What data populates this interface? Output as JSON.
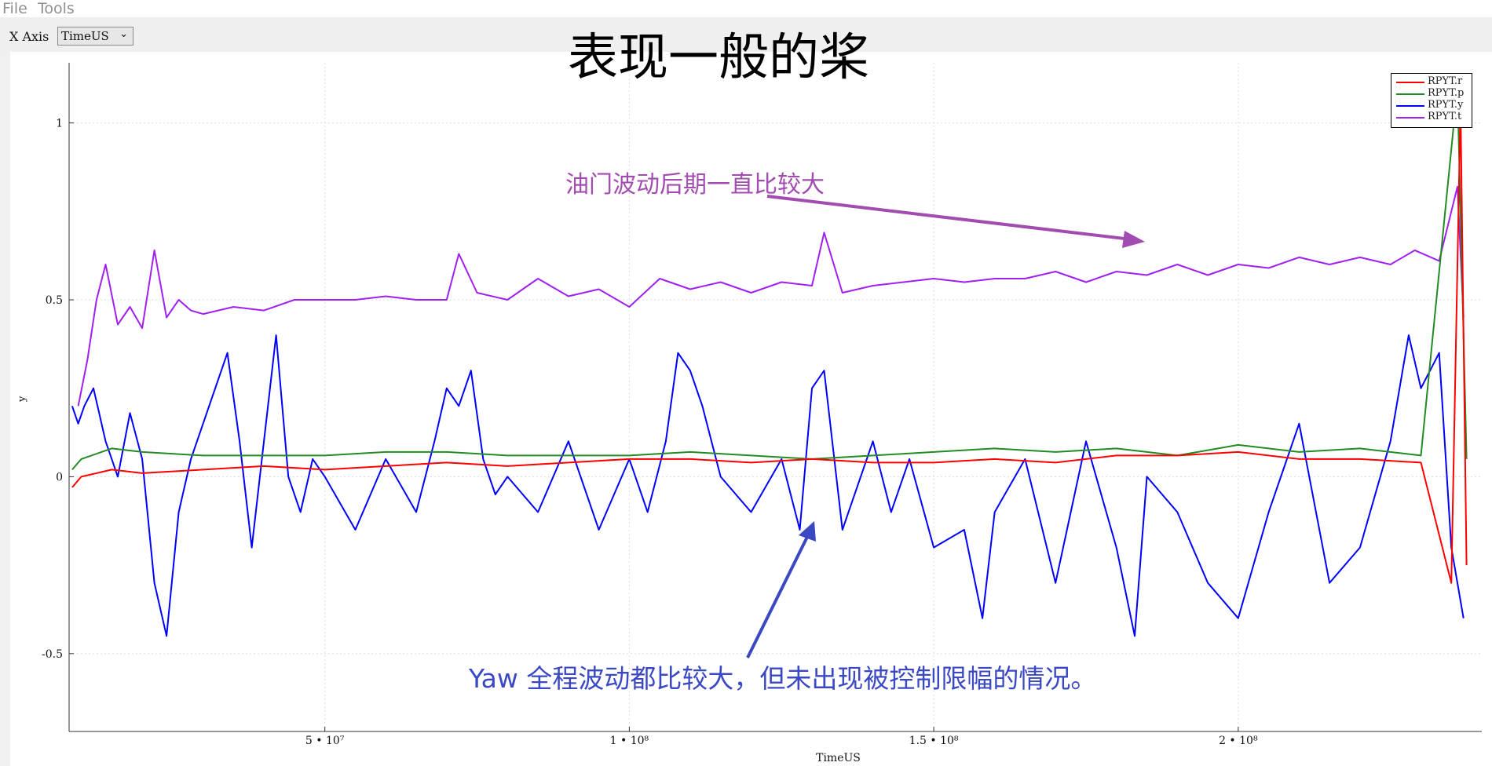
{
  "menu": {
    "file": "File",
    "tools": "Tools"
  },
  "toolbar": {
    "x_axis_label": "X Axis",
    "x_axis_value": "TimeUS",
    "dropdown_icon": "chevron-down-icon"
  },
  "page_title": "表现一般的桨",
  "annotations": {
    "throttle_note": "油门波动后期一直比较大",
    "throttle_color": "#a24bb0",
    "yaw_note": "Yaw 全程波动都比较大，但未出现被控制限幅的情况。",
    "yaw_color": "#3b48c4"
  },
  "legend": [
    {
      "label": "RPYT.r",
      "color": "#ff0000"
    },
    {
      "label": "RPYT.p",
      "color": "#228b22"
    },
    {
      "label": "RPYT.y",
      "color": "#0000ff"
    },
    {
      "label": "RPYT.t",
      "color": "#a020f0"
    }
  ],
  "chart_data": {
    "type": "line",
    "xlabel": "TimeUS",
    "ylabel": "y",
    "xlim": [
      8000000,
      240000000
    ],
    "ylim": [
      -0.72,
      1.17
    ],
    "x_ticks": [
      {
        "value": 50000000,
        "label": "5 • 10⁷"
      },
      {
        "value": 100000000,
        "label": "1 • 10⁸"
      },
      {
        "value": 150000000,
        "label": "1.5 • 10⁸"
      },
      {
        "value": 200000000,
        "label": "2 • 10⁸"
      }
    ],
    "y_ticks": [
      {
        "value": -0.5,
        "label": "-0.5"
      },
      {
        "value": 0,
        "label": "0"
      },
      {
        "value": 0.5,
        "label": "0.5"
      },
      {
        "value": 1,
        "label": "1"
      }
    ],
    "grid": true,
    "legend_position": "top-right",
    "series": [
      {
        "name": "RPYT.t",
        "color": "#a020f0",
        "x": [
          9500000,
          11000000,
          12500000,
          14000000,
          16000000,
          18000000,
          20000000,
          22000000,
          24000000,
          26000000,
          28000000,
          30000000,
          35000000,
          40000000,
          45000000,
          50000000,
          55000000,
          60000000,
          65000000,
          70000000,
          72000000,
          75000000,
          80000000,
          85000000,
          90000000,
          95000000,
          100000000,
          105000000,
          110000000,
          115000000,
          120000000,
          125000000,
          130000000,
          132000000,
          135000000,
          140000000,
          145000000,
          150000000,
          155000000,
          160000000,
          165000000,
          170000000,
          175000000,
          180000000,
          185000000,
          190000000,
          195000000,
          200000000,
          205000000,
          210000000,
          215000000,
          220000000,
          225000000,
          229000000,
          233000000,
          236000000,
          237000000
        ],
        "y": [
          0.2,
          0.33,
          0.5,
          0.6,
          0.43,
          0.48,
          0.42,
          0.64,
          0.45,
          0.5,
          0.47,
          0.46,
          0.48,
          0.47,
          0.5,
          0.5,
          0.5,
          0.51,
          0.5,
          0.5,
          0.63,
          0.52,
          0.5,
          0.56,
          0.51,
          0.53,
          0.48,
          0.56,
          0.53,
          0.55,
          0.52,
          0.55,
          0.54,
          0.69,
          0.52,
          0.54,
          0.55,
          0.56,
          0.55,
          0.56,
          0.56,
          0.58,
          0.55,
          0.58,
          0.57,
          0.6,
          0.57,
          0.6,
          0.59,
          0.62,
          0.6,
          0.62,
          0.6,
          0.64,
          0.61,
          0.82,
          0.45
        ]
      },
      {
        "name": "RPYT.y",
        "color": "#0000ff",
        "x": [
          8500000,
          9500000,
          10500000,
          12000000,
          14000000,
          16000000,
          18000000,
          20000000,
          22000000,
          24000000,
          26000000,
          28000000,
          30000000,
          32000000,
          34000000,
          36000000,
          38000000,
          40000000,
          42000000,
          44000000,
          46000000,
          48000000,
          50000000,
          55000000,
          60000000,
          65000000,
          68000000,
          70000000,
          72000000,
          74000000,
          76000000,
          78000000,
          80000000,
          85000000,
          90000000,
          95000000,
          100000000,
          103000000,
          106000000,
          108000000,
          110000000,
          112000000,
          115000000,
          120000000,
          125000000,
          128000000,
          130000000,
          132000000,
          135000000,
          140000000,
          143000000,
          146000000,
          150000000,
          155000000,
          158000000,
          160000000,
          165000000,
          170000000,
          175000000,
          180000000,
          183000000,
          185000000,
          190000000,
          195000000,
          200000000,
          205000000,
          210000000,
          215000000,
          220000000,
          225000000,
          228000000,
          230000000,
          233000000,
          235000000,
          237000000
        ],
        "y": [
          0.2,
          0.15,
          0.2,
          0.25,
          0.1,
          0.0,
          0.18,
          0.05,
          -0.3,
          -0.45,
          -0.1,
          0.05,
          0.15,
          0.25,
          0.35,
          0.1,
          -0.2,
          0.1,
          0.4,
          0.0,
          -0.1,
          0.05,
          0.0,
          -0.15,
          0.05,
          -0.1,
          0.1,
          0.25,
          0.2,
          0.3,
          0.05,
          -0.05,
          0.0,
          -0.1,
          0.1,
          -0.15,
          0.05,
          -0.1,
          0.1,
          0.35,
          0.3,
          0.2,
          0.0,
          -0.1,
          0.05,
          -0.15,
          0.25,
          0.3,
          -0.15,
          0.1,
          -0.1,
          0.05,
          -0.2,
          -0.15,
          -0.4,
          -0.1,
          0.05,
          -0.3,
          0.1,
          -0.2,
          -0.45,
          0.0,
          -0.1,
          -0.3,
          -0.4,
          -0.1,
          0.15,
          -0.3,
          -0.2,
          0.1,
          0.4,
          0.25,
          0.35,
          -0.2,
          -0.4
        ]
      },
      {
        "name": "RPYT.p",
        "color": "#228b22",
        "x": [
          8500000,
          10000000,
          15000000,
          20000000,
          30000000,
          40000000,
          50000000,
          60000000,
          70000000,
          80000000,
          90000000,
          100000000,
          110000000,
          120000000,
          130000000,
          140000000,
          150000000,
          160000000,
          170000000,
          180000000,
          190000000,
          200000000,
          210000000,
          220000000,
          230000000,
          236000000,
          237500000
        ],
        "y": [
          0.02,
          0.05,
          0.08,
          0.07,
          0.06,
          0.06,
          0.06,
          0.07,
          0.07,
          0.06,
          0.06,
          0.06,
          0.07,
          0.06,
          0.05,
          0.06,
          0.07,
          0.08,
          0.07,
          0.08,
          0.06,
          0.09,
          0.07,
          0.08,
          0.06,
          1.1,
          0.05
        ]
      },
      {
        "name": "RPYT.r",
        "color": "#ff0000",
        "x": [
          8500000,
          10000000,
          15000000,
          20000000,
          30000000,
          40000000,
          50000000,
          60000000,
          70000000,
          80000000,
          90000000,
          100000000,
          110000000,
          120000000,
          130000000,
          140000000,
          150000000,
          160000000,
          170000000,
          180000000,
          190000000,
          200000000,
          210000000,
          220000000,
          230000000,
          235000000,
          236500000,
          237500000
        ],
        "y": [
          -0.03,
          0.0,
          0.02,
          0.01,
          0.02,
          0.03,
          0.02,
          0.03,
          0.04,
          0.03,
          0.04,
          0.05,
          0.05,
          0.04,
          0.05,
          0.04,
          0.04,
          0.05,
          0.04,
          0.06,
          0.06,
          0.07,
          0.05,
          0.05,
          0.04,
          -0.3,
          1.05,
          -0.25
        ]
      }
    ]
  }
}
